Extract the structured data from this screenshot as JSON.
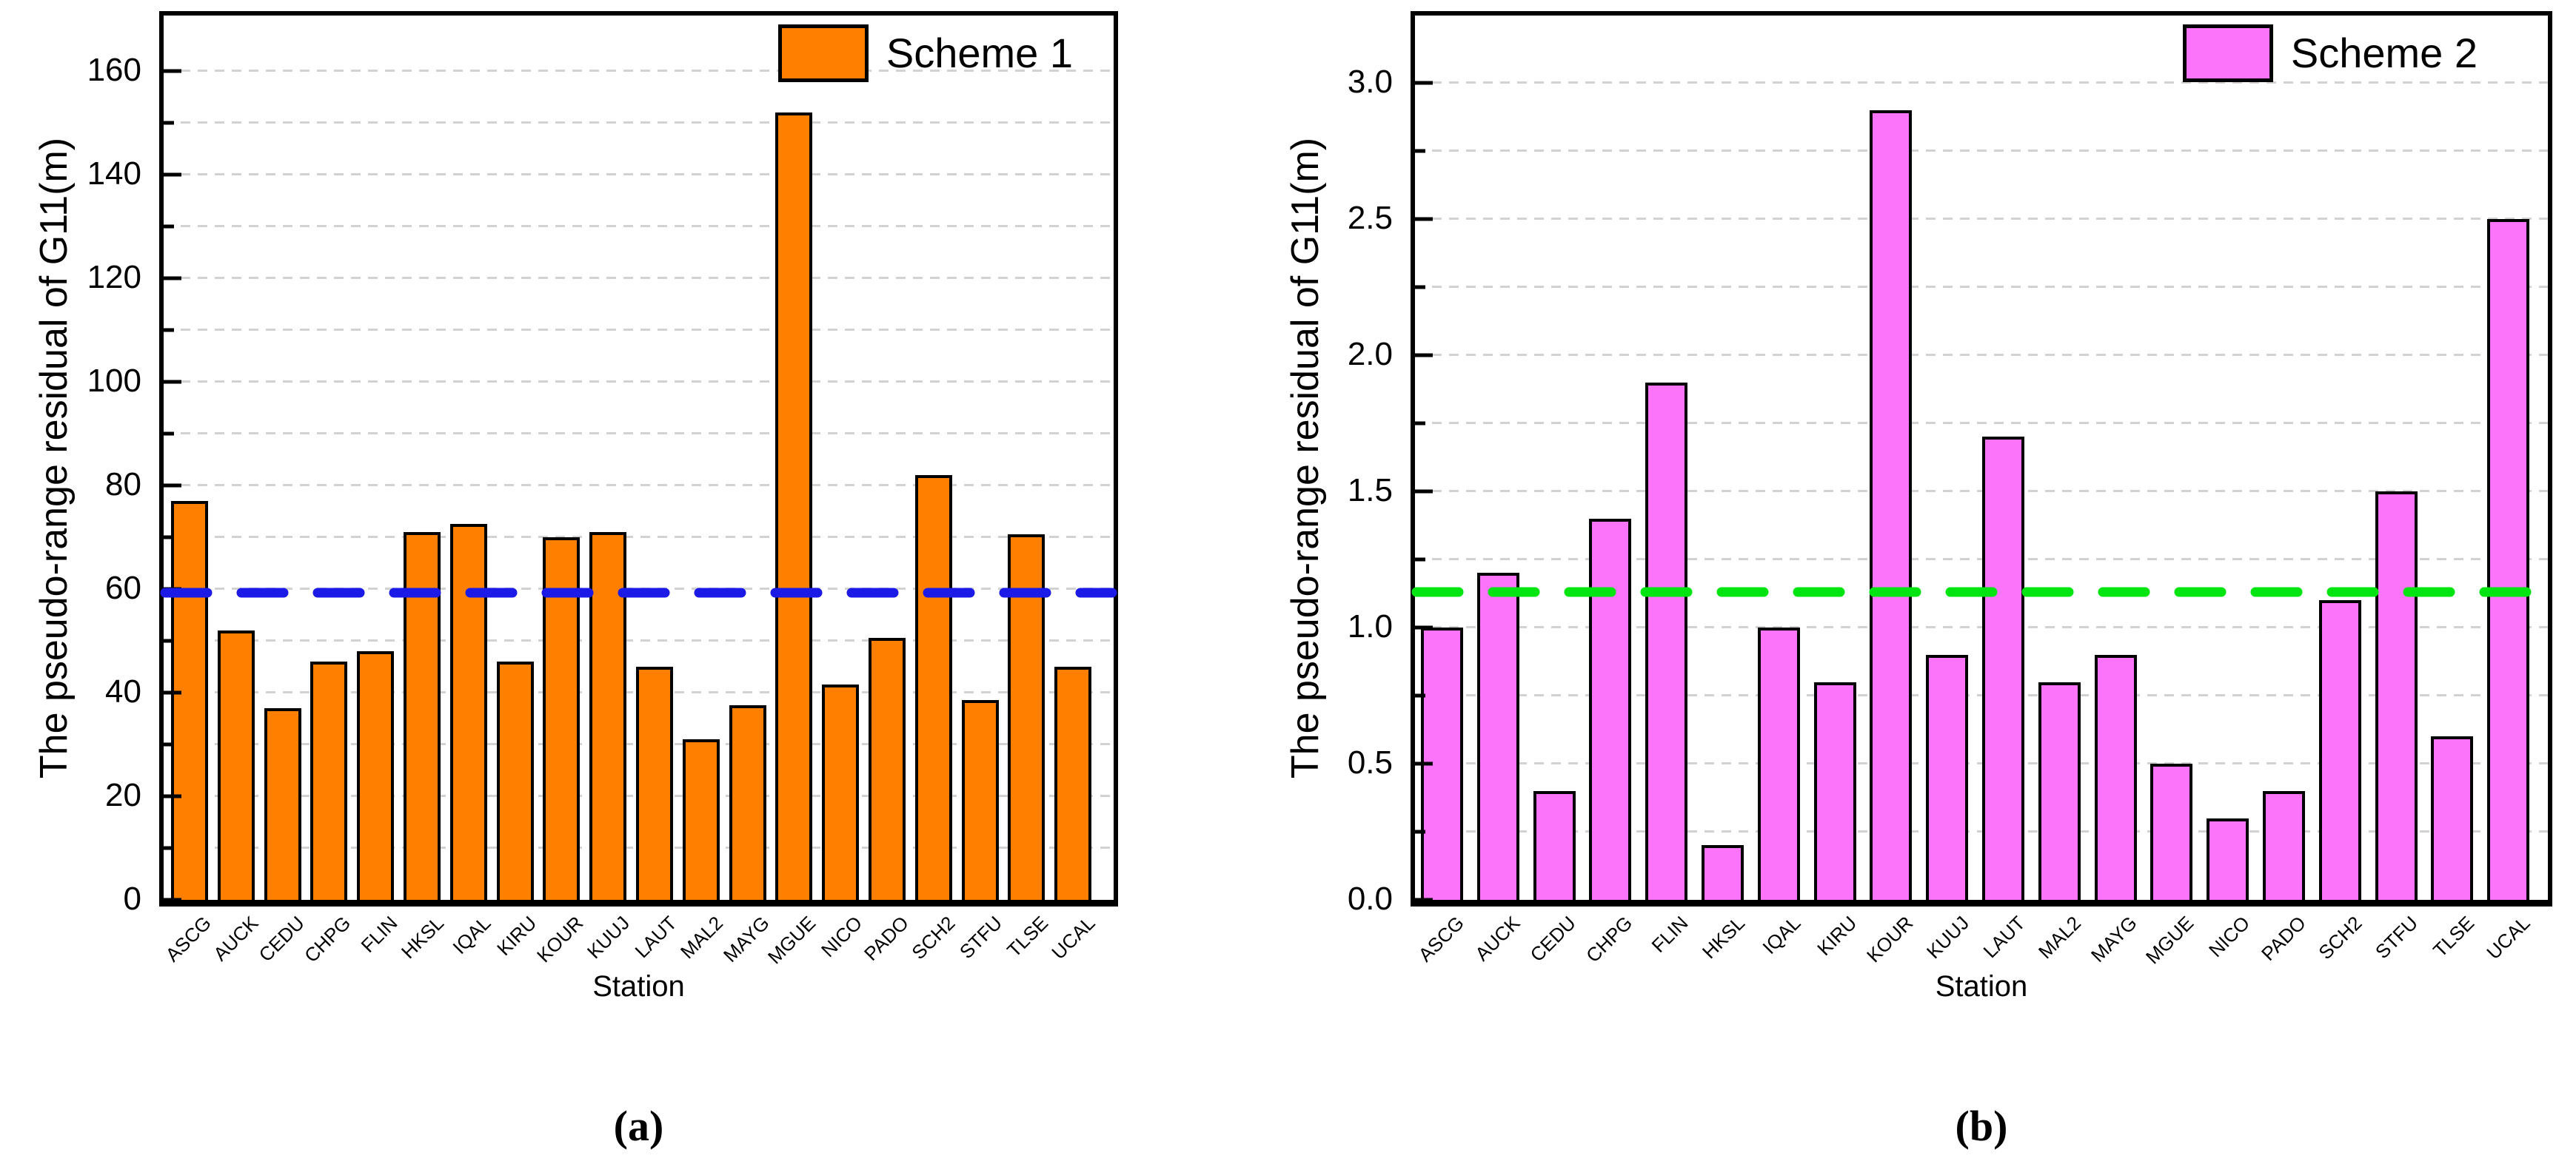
{
  "chart_data": [
    {
      "type": "bar",
      "caption": "(a)",
      "legend_label": "Scheme 1",
      "legend_position": "top-right",
      "xlabel": "Station",
      "ylabel": "The pseudo-range residual of G11(m)",
      "categories": [
        "ASCG",
        "AUCK",
        "CEDU",
        "CHPG",
        "FLIN",
        "HKSL",
        "IQAL",
        "KIRU",
        "KOUR",
        "KUUJ",
        "LAUT",
        "MAL2",
        "MAYG",
        "MGUE",
        "NICO",
        "PADO",
        "SCH2",
        "STFU",
        "TLSE",
        "UCAL"
      ],
      "values": [
        77,
        52,
        37,
        46,
        48,
        71,
        72.5,
        46,
        70,
        71,
        45,
        31,
        37.5,
        152,
        41.5,
        50.5,
        82,
        38.5,
        70.5,
        45
      ],
      "bar_color": "#ff8000",
      "bar_border_color": "#000000",
      "threshold": {
        "value": 59.3,
        "color": "#1b1ae6",
        "style": "dashed"
      },
      "ylim": [
        0,
        170.7
      ],
      "y_major_ticks": [
        0,
        20,
        40,
        60,
        80,
        100,
        120,
        140,
        160
      ],
      "y_tick_labels": [
        "0",
        "20",
        "40",
        "60",
        "80",
        "100",
        "120",
        "140",
        "160"
      ],
      "y_minor_ticks": [
        10,
        30,
        50,
        70,
        90,
        110,
        130,
        150
      ],
      "gridline_values": [
        10,
        20,
        30,
        40,
        50,
        60,
        70,
        80,
        90,
        100,
        110,
        120,
        130,
        140,
        150,
        160
      ],
      "grid": "dashed-horizontal",
      "gridline_color": "#d2d2d2"
    },
    {
      "type": "bar",
      "caption": "(b)",
      "legend_label": "Scheme 2",
      "legend_position": "top-right",
      "xlabel": "Station",
      "ylabel": "The pseudo-range residual of G11(m)",
      "categories": [
        "ASCG",
        "AUCK",
        "CEDU",
        "CHPG",
        "FLIN",
        "HKSL",
        "IQAL",
        "KIRU",
        "KOUR",
        "KUUJ",
        "LAUT",
        "MAL2",
        "MAYG",
        "MGUE",
        "NICO",
        "PADO",
        "SCH2",
        "STFU",
        "TLSE",
        "UCAL"
      ],
      "values": [
        1.0,
        1.2,
        0.4,
        1.4,
        1.9,
        0.2,
        1.0,
        0.8,
        2.9,
        0.9,
        1.7,
        0.8,
        0.9,
        0.5,
        0.3,
        0.4,
        1.1,
        1.5,
        0.6,
        2.5
      ],
      "bar_color": "#fb74fa",
      "bar_border_color": "#000000",
      "threshold": {
        "value": 1.13,
        "color": "#00e512",
        "style": "dashed"
      },
      "ylim": [
        0,
        3.247
      ],
      "y_major_ticks": [
        0,
        0.5,
        1.0,
        1.5,
        2.0,
        2.5,
        3.0
      ],
      "y_tick_labels": [
        "0.0",
        "0.5",
        "1.0",
        "1.5",
        "2.0",
        "2.5",
        "3.0"
      ],
      "y_minor_ticks": [
        0.25,
        0.75,
        1.25,
        1.75,
        2.25,
        2.75
      ],
      "gridline_values": [
        0.25,
        0.5,
        0.75,
        1.0,
        1.25,
        1.5,
        1.75,
        2.0,
        2.25,
        2.5,
        2.75,
        3.0
      ],
      "grid": "dashed-horizontal",
      "gridline_color": "#d2d2d2"
    }
  ]
}
